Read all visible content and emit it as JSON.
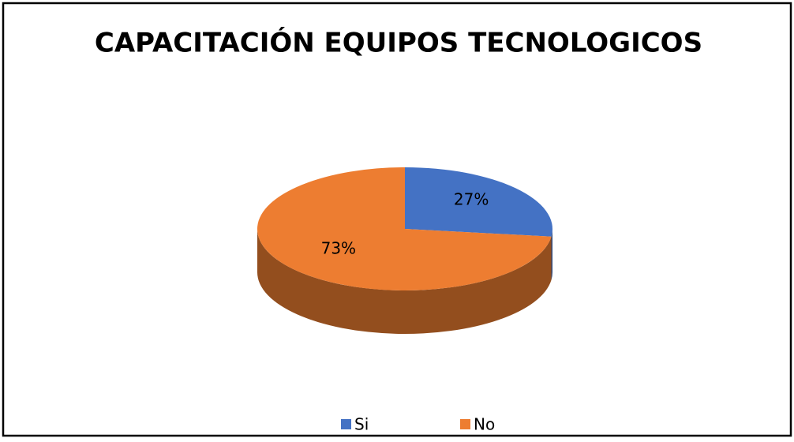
{
  "chart_data": {
    "type": "pie",
    "title": "CAPACITACIÓN EQUIPOS TECNOLOGICOS",
    "categories": [
      "Si",
      "No"
    ],
    "values": [
      27,
      73
    ],
    "value_labels": [
      "27%",
      "73%"
    ],
    "colors": [
      "#4472c4",
      "#ed7d31"
    ],
    "legend": "bottom"
  }
}
